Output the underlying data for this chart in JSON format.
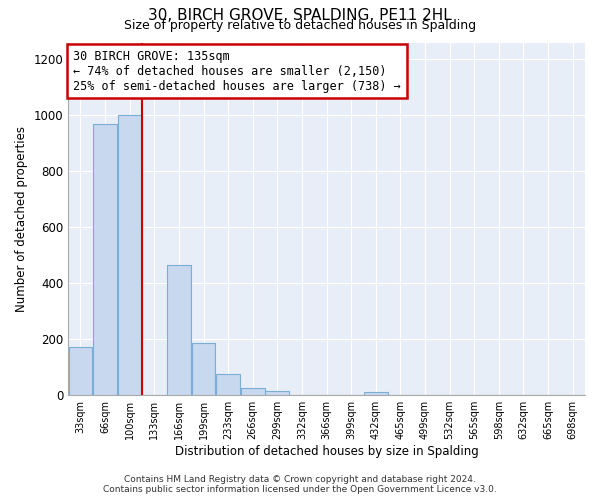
{
  "title": "30, BIRCH GROVE, SPALDING, PE11 2HL",
  "subtitle": "Size of property relative to detached houses in Spalding",
  "xlabel": "Distribution of detached houses by size in Spalding",
  "ylabel": "Number of detached properties",
  "bar_labels": [
    "33sqm",
    "66sqm",
    "100sqm",
    "133sqm",
    "166sqm",
    "199sqm",
    "233sqm",
    "266sqm",
    "299sqm",
    "332sqm",
    "366sqm",
    "399sqm",
    "432sqm",
    "465sqm",
    "499sqm",
    "532sqm",
    "565sqm",
    "598sqm",
    "632sqm",
    "665sqm",
    "698sqm"
  ],
  "bar_values": [
    170,
    970,
    1000,
    0,
    465,
    185,
    75,
    25,
    15,
    0,
    0,
    0,
    10,
    0,
    0,
    0,
    0,
    0,
    0,
    0,
    0
  ],
  "bar_color": "#c8d8ee",
  "bar_edge_color": "#7aaed6",
  "vline_color": "#cc0000",
  "ylim": [
    0,
    1260
  ],
  "yticks": [
    0,
    200,
    400,
    600,
    800,
    1000,
    1200
  ],
  "annotation_title": "30 BIRCH GROVE: 135sqm",
  "annotation_line1": "← 74% of detached houses are smaller (2,150)",
  "annotation_line2": "25% of semi-detached houses are larger (738) →",
  "annotation_box_color": "#ffffff",
  "annotation_box_edgecolor": "#cc0000",
  "footer_line1": "Contains HM Land Registry data © Crown copyright and database right 2024.",
  "footer_line2": "Contains public sector information licensed under the Open Government Licence v3.0.",
  "plot_bg_color": "#e8eef8",
  "background_color": "#ffffff",
  "grid_color": "#ffffff"
}
